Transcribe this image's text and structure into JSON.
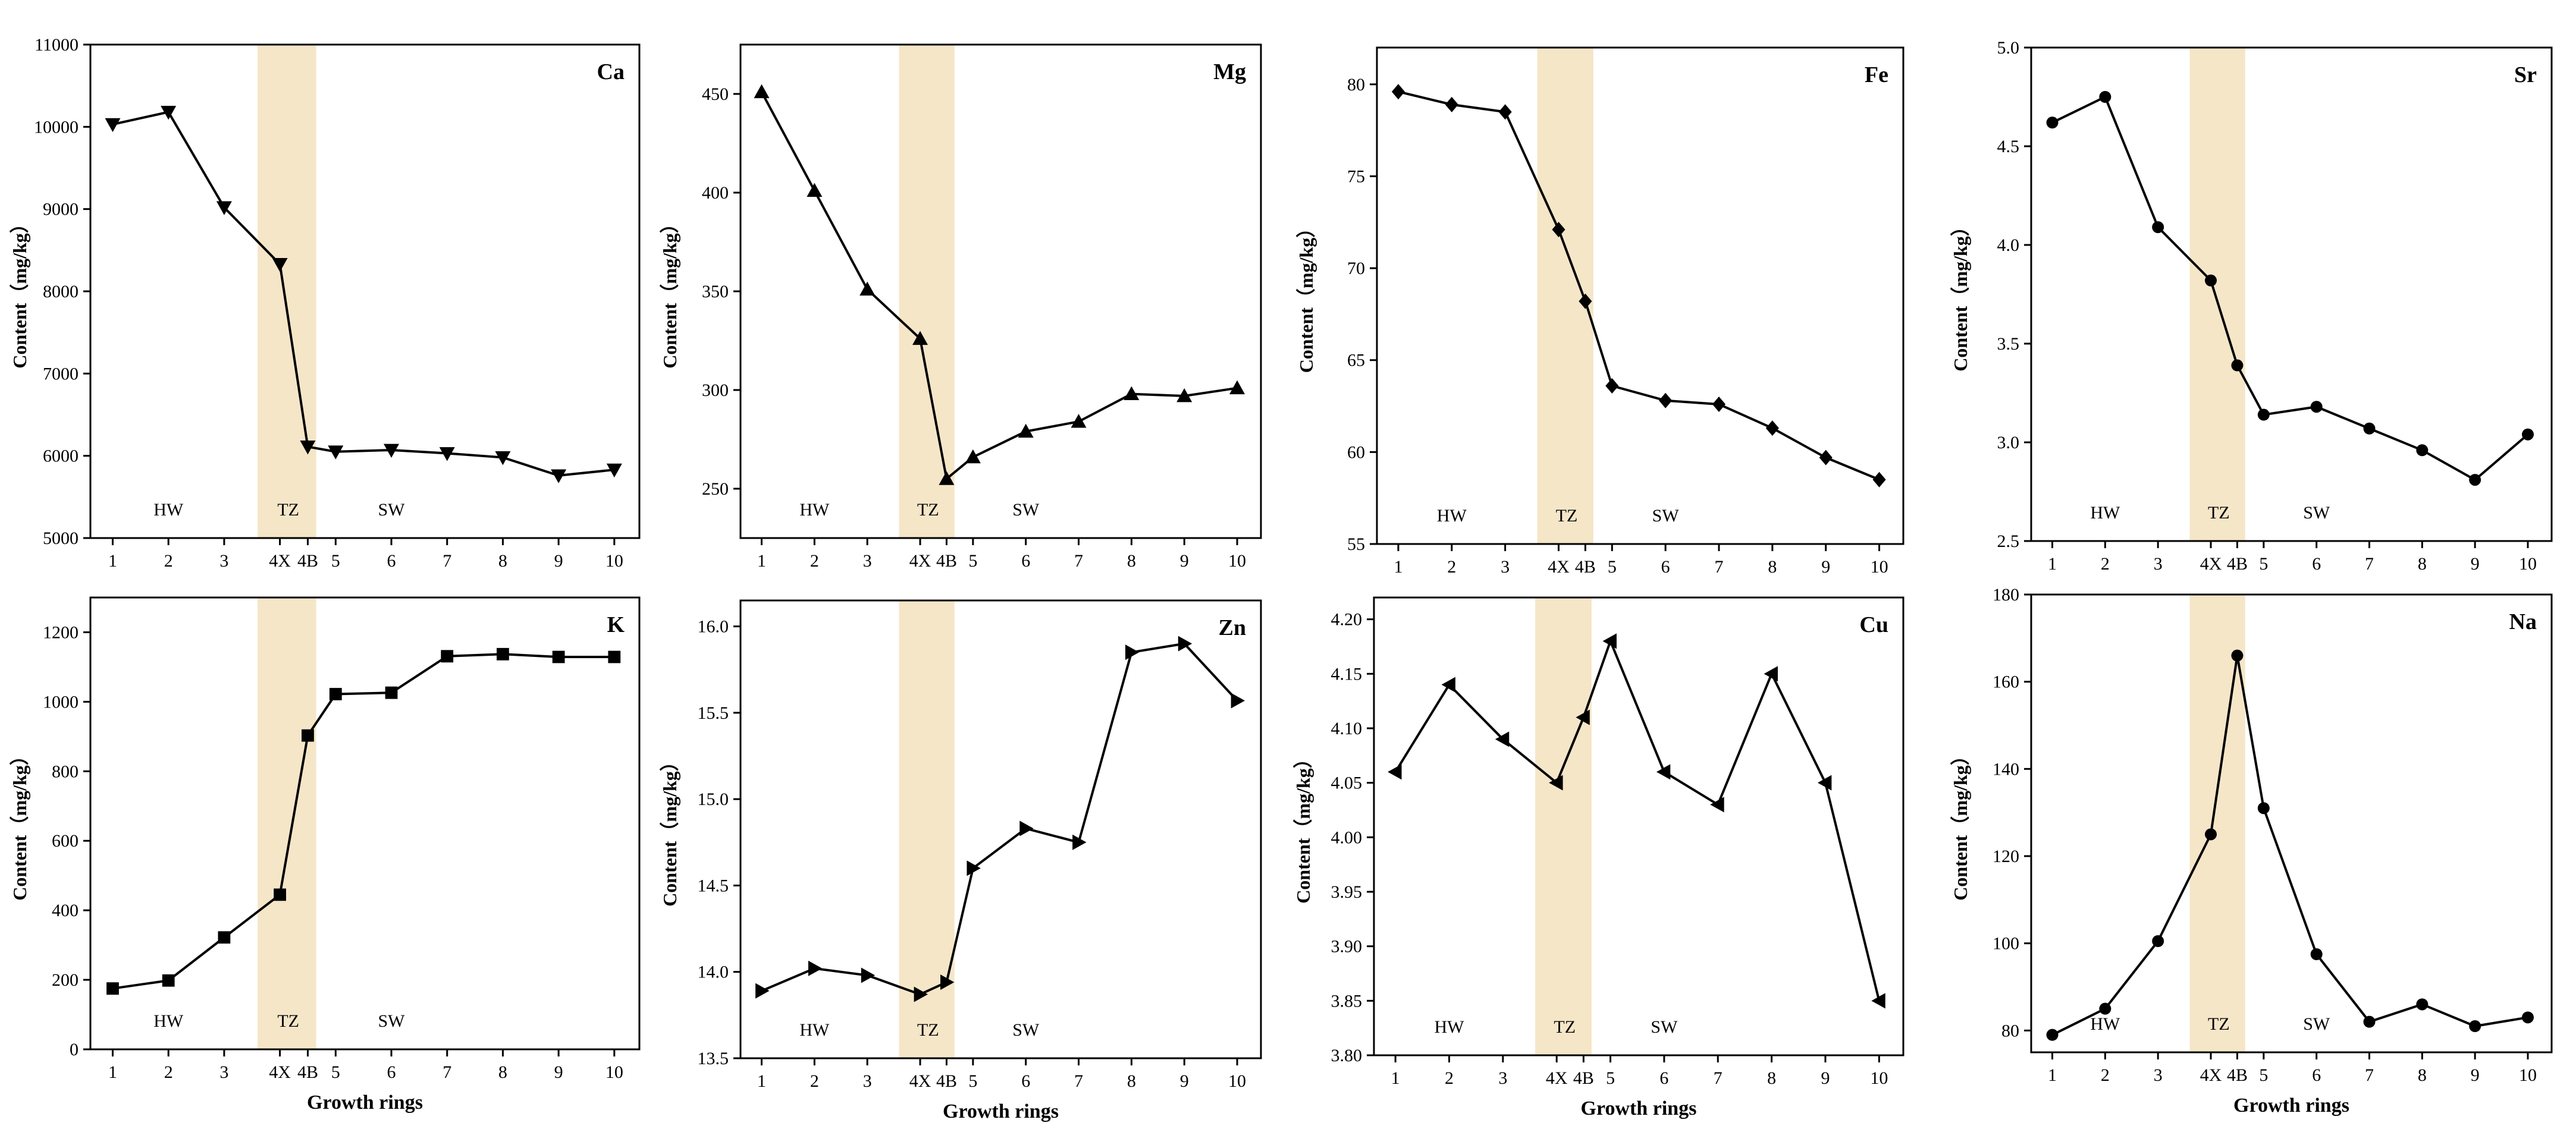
{
  "colors": {
    "band": "#f5e6c8",
    "line": "#000000",
    "axis": "#000000",
    "background": "#ffffff"
  },
  "chart_data": [
    {
      "type": "line",
      "title": "Ca",
      "ylabel": "Content（mg/kg）",
      "xlabel": "",
      "ylim": [
        5000,
        11000
      ],
      "yticks": [
        "5000",
        "6000",
        "7000",
        "8000",
        "9000",
        "10000",
        "11000"
      ],
      "marker": "triangle-down",
      "x": [
        1,
        2,
        3,
        4,
        4.5,
        5,
        6,
        7,
        8,
        9,
        10
      ],
      "values": [
        10030,
        10180,
        9020,
        8330,
        6110,
        6050,
        6070,
        6030,
        5980,
        5760,
        5830
      ],
      "zones": [
        "HW",
        "TZ",
        "SW"
      ]
    },
    {
      "type": "line",
      "title": "Mg",
      "ylabel": "Content（mg/kg）",
      "xlabel": "",
      "ylim": [
        225,
        475
      ],
      "yticks": [
        "250",
        "300",
        "350",
        "400",
        "450"
      ],
      "marker": "triangle-up",
      "x": [
        1,
        2,
        3,
        4,
        4.5,
        5,
        6,
        7,
        8,
        9,
        10
      ],
      "values": [
        451,
        401,
        351,
        326,
        255,
        266,
        279,
        284,
        298,
        297,
        301
      ],
      "zones": [
        "HW",
        "TZ",
        "SW"
      ]
    },
    {
      "type": "line",
      "title": "Fe",
      "ylabel": "Content（mg/kg）",
      "xlabel": "",
      "ylim": [
        55,
        82
      ],
      "yticks": [
        "55",
        "60",
        "65",
        "70",
        "75",
        "80"
      ],
      "marker": "diamond",
      "x": [
        1,
        2,
        3,
        4,
        4.5,
        5,
        6,
        7,
        8,
        9,
        10
      ],
      "values": [
        79.6,
        78.9,
        78.5,
        72.1,
        68.2,
        63.6,
        62.8,
        62.6,
        61.3,
        59.7,
        58.5
      ],
      "zones": [
        "HW",
        "TZ",
        "SW"
      ]
    },
    {
      "type": "line",
      "title": "Sr",
      "ylabel": "Content（mg/kg）",
      "xlabel": "",
      "ylim": [
        2.5,
        5.0
      ],
      "yticks": [
        "2.5",
        "3.0",
        "3.5",
        "4.0",
        "4.5",
        "5.0"
      ],
      "marker": "circle",
      "x": [
        1,
        2,
        3,
        4,
        4.5,
        5,
        6,
        7,
        8,
        9,
        10
      ],
      "values": [
        4.62,
        4.75,
        4.09,
        3.82,
        3.39,
        3.14,
        3.18,
        3.07,
        2.96,
        2.81,
        3.04
      ],
      "zones": [
        "HW",
        "TZ",
        "SW"
      ]
    },
    {
      "type": "line",
      "title": "K",
      "ylabel": "Content（mg/kg）",
      "xlabel": "Growth  rings",
      "ylim": [
        0,
        1300
      ],
      "yticks": [
        "0",
        "200",
        "400",
        "600",
        "800",
        "1000",
        "1200"
      ],
      "marker": "square",
      "x": [
        1,
        2,
        3,
        4,
        4.5,
        5,
        6,
        7,
        8,
        9,
        10
      ],
      "values": [
        175,
        198,
        322,
        445,
        903,
        1022,
        1026,
        1131,
        1137,
        1129,
        1129
      ],
      "zones": [
        "HW",
        "TZ",
        "SW"
      ]
    },
    {
      "type": "line",
      "title": "Zn",
      "ylabel": "Content（mg/kg）",
      "xlabel": "Growth  rings",
      "ylim": [
        13.5,
        16.15
      ],
      "yticks": [
        "13.5",
        "14.0",
        "14.5",
        "15.0",
        "15.5",
        "16.0"
      ],
      "marker": "triangle-right",
      "x": [
        1,
        2,
        3,
        4,
        4.5,
        5,
        6,
        7,
        8,
        9,
        10
      ],
      "values": [
        13.89,
        14.02,
        13.98,
        13.87,
        13.94,
        14.6,
        14.83,
        14.75,
        15.85,
        15.9,
        15.57
      ],
      "zones": [
        "HW",
        "TZ",
        "SW"
      ]
    },
    {
      "type": "line",
      "title": "Cu",
      "ylabel": "Content（mg/kg）",
      "xlabel": "Growth  rings",
      "ylim": [
        3.8,
        4.22
      ],
      "yticks": [
        "3.80",
        "3.85",
        "3.90",
        "3.95",
        "4.00",
        "4.05",
        "4.10",
        "4.15",
        "4.20"
      ],
      "marker": "triangle-left",
      "x": [
        1,
        2,
        3,
        4,
        4.5,
        5,
        6,
        7,
        8,
        9,
        10
      ],
      "values": [
        4.06,
        4.14,
        4.09,
        4.05,
        4.11,
        4.18,
        4.06,
        4.03,
        4.15,
        4.05,
        3.85
      ],
      "zones": [
        "HW",
        "TZ",
        "SW"
      ]
    },
    {
      "type": "line",
      "title": "Na",
      "ylabel": "Content（mg/kg）",
      "xlabel": "Growth  rings",
      "ylim": [
        75,
        180
      ],
      "yticks": [
        "80",
        "100",
        "120",
        "140",
        "160",
        "180"
      ],
      "marker": "circle",
      "x": [
        1,
        2,
        3,
        4,
        4.5,
        5,
        6,
        7,
        8,
        9,
        10
      ],
      "values": [
        79,
        85,
        100.5,
        125,
        166,
        131,
        97.5,
        82,
        86,
        81,
        83
      ],
      "zones": [
        "HW",
        "TZ",
        "SW"
      ]
    }
  ],
  "x_tick_labels": [
    "1",
    "2",
    "3",
    "4X",
    "4B",
    "5",
    "6",
    "7",
    "8",
    "9",
    "10"
  ],
  "x_tick_positions": [
    1,
    2,
    3,
    4,
    4.5,
    5,
    6,
    7,
    8,
    9,
    10
  ],
  "x_range": [
    0.6,
    10.45
  ],
  "band_range": [
    3.6,
    4.65
  ],
  "zone_positions": {
    "HW": 2,
    "TZ": 4.15,
    "SW": 6
  }
}
